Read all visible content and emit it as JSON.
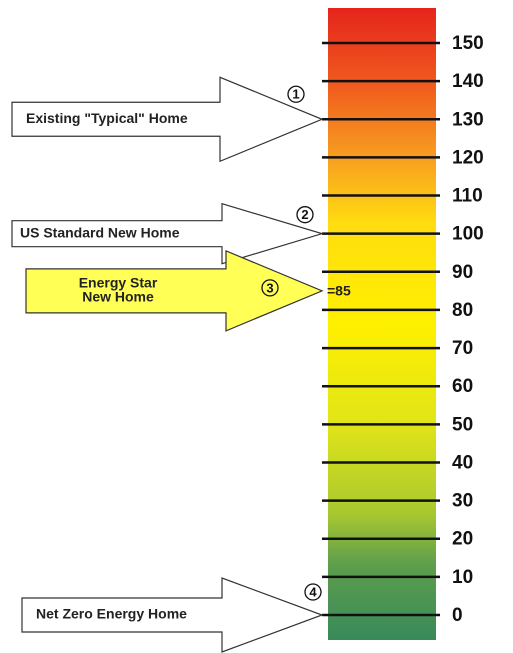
{
  "scale": {
    "range": [
      0,
      150
    ],
    "ticks": [
      150,
      140,
      130,
      120,
      110,
      100,
      90,
      80,
      70,
      60,
      50,
      40,
      30,
      20,
      10,
      0
    ]
  },
  "arrows": [
    {
      "number": "1",
      "lines": [
        "Existing \"Typical\" Home"
      ],
      "value": 130
    },
    {
      "number": "2",
      "lines": [
        "US Standard New Home"
      ],
      "value": 100
    },
    {
      "number": "3",
      "lines": [
        "Energy Star",
        "New Home"
      ],
      "value": 85,
      "annotation": "=85"
    },
    {
      "number": "4",
      "lines": [
        "Net Zero Energy Home"
      ],
      "value": 0
    }
  ]
}
